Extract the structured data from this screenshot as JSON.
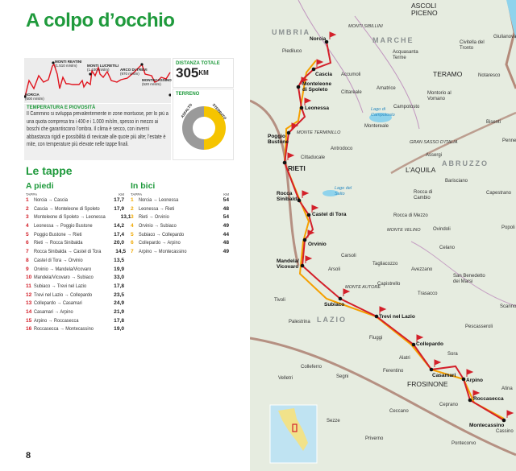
{
  "title": "A colpo d’occhio",
  "profile": {
    "points": [
      {
        "name": "NORCIA",
        "alt": "(600 m/slm)"
      },
      {
        "name": "MONTI REATINI",
        "alt": "(1.510 m/slm)"
      },
      {
        "name": "MONTI LUCRETILI",
        "alt": "(1.100 m/slm)"
      },
      {
        "name": "ARCO DI TREVI",
        "alt": "(970 m/slm)"
      },
      {
        "name": "MONTECASSINO",
        "alt": "(520 m/slm)"
      }
    ]
  },
  "distance": {
    "label": "DISTANZA TOTALE",
    "value": "305",
    "unit": "KM"
  },
  "terrain": {
    "label": "TERRENO",
    "asphalt_label": "ASFALTO",
    "dirt_label": "STERRATO",
    "asphalt_share": 0.5,
    "dirt_share": 0.5,
    "asphalt_color": "#9a9a9a",
    "dirt_color": "#f5c400"
  },
  "climate": {
    "label": "TEMPERATURA E PIOVOSITÀ",
    "text": "Il Cammino si sviluppa prevalentemente in zone montuose, per lo più a una quota compresa tra i 400 e i 1.000 m/slm, spesso in mezzo ai boschi che garantiscono l’ombra. Il clima è secco, con inverni abbastanza rigidi e possibilità di nevicate alle quote più alte; l’estate è mite, con temperature più elevate nelle tappe finali."
  },
  "tappe": {
    "heading": "Le tappe",
    "piedi": {
      "label": "A piedi",
      "col_tappa": "TAPPA",
      "col_km": "KM",
      "rows": [
        {
          "n": "1",
          "route": "Norcia → Cascia",
          "km": "17,7"
        },
        {
          "n": "2",
          "route": "Cascia → Monteleone di Spoleto",
          "km": "17,9"
        },
        {
          "n": "3",
          "route": "Monteleone di Spoleto → Leonessa",
          "km": "13,1"
        },
        {
          "n": "4",
          "route": "Leonessa → Poggio Bustone",
          "km": "14,2"
        },
        {
          "n": "5",
          "route": "Poggio Bustone → Rieti",
          "km": "17,4"
        },
        {
          "n": "6",
          "route": "Rieti → Rocca Sinibalda",
          "km": "20,0"
        },
        {
          "n": "7",
          "route": "Rocca Sinibalda → Castel di Tora",
          "km": "14,5"
        },
        {
          "n": "8",
          "route": "Castel di Tora → Orvinio",
          "km": "13,5"
        },
        {
          "n": "9",
          "route": "Orvinio → Mandela/Vicovaro",
          "km": "19,9"
        },
        {
          "n": "10",
          "route": "Mandela/Vicovaro → Subiaco",
          "km": "33,0"
        },
        {
          "n": "11",
          "route": "Subiaco → Trevi nel Lazio",
          "km": "17,8"
        },
        {
          "n": "12",
          "route": "Trevi nel Lazio → Collepardo",
          "km": "23,5"
        },
        {
          "n": "13",
          "route": "Collepardo → Casamari",
          "km": "24,9"
        },
        {
          "n": "14",
          "route": "Casamari → Arpino",
          "km": "21,9"
        },
        {
          "n": "15",
          "route": "Arpino → Roccasecca",
          "km": "17,8"
        },
        {
          "n": "16",
          "route": "Roccasecca → Montecassino",
          "km": "19,0"
        }
      ]
    },
    "bici": {
      "label": "In bici",
      "col_tappa": "TAPPA",
      "col_km": "KM",
      "rows": [
        {
          "n": "1",
          "route": "Norcia → Leonessa",
          "km": "54"
        },
        {
          "n": "2",
          "route": "Leonessa → Rieti",
          "km": "48"
        },
        {
          "n": "3",
          "route": "Rieti → Orvinio",
          "km": "54"
        },
        {
          "n": "4",
          "route": "Orvinio → Subiaco",
          "km": "49"
        },
        {
          "n": "5",
          "route": "Subiaco → Collepardo",
          "km": "44"
        },
        {
          "n": "6",
          "route": "Collepardo → Arpino",
          "km": "48"
        },
        {
          "n": "7",
          "route": "Arpino → Montecassino",
          "km": "49"
        }
      ]
    }
  },
  "page_number": "8",
  "map": {
    "route_color": "#d3202a",
    "bike_color": "#f5a000",
    "stops": [
      "Norcia",
      "Cascia",
      "Monteleone di Spoleto",
      "Leonessa",
      "Poggio Bustone",
      "RIETI",
      "Rocca Sinibalda",
      "Castel di Tora",
      "Orvinio",
      "Mandela/ Vicovaro",
      "Subiaco",
      "Trevi nel Lazio",
      "Collepardo",
      "Casamari",
      "Arpino",
      "Roccasecca",
      "Montecassino"
    ],
    "regions": [
      "UMBRIA",
      "MARCHE",
      "ABRUZZO",
      "LAZIO"
    ],
    "provinces": [
      "ASCOLI PICENO",
      "TERAMO",
      "L’AQUILA",
      "FROSINONE"
    ],
    "mountains": [
      "MONTI SIBILLINI",
      "MONTE TERMINILLO",
      "GRAN SASSO D’ITALIA",
      "MONTE VELINO",
      "MONTE AUTORE"
    ],
    "towns": [
      "Piediluco",
      "Accumoli",
      "Acquasanta Terme",
      "Civitella del Tronto",
      "Giulianova",
      "Notaresco",
      "Amatrice",
      "Cittareale",
      "Montorio al Vomano",
      "Campotosto",
      "Montereale",
      "Bisenti",
      "Penne",
      "Antrodoco",
      "Cittaducale",
      "Assergi",
      "Barisciano",
      "Capestrano",
      "Rocca di Cambio",
      "Rocca di Mezzo",
      "Ovindoli",
      "Popoli",
      "Celano",
      "Carsoli",
      "Tagliacozzo",
      "Avezzano",
      "Arsoli",
      "San Benedetto dei Marsi",
      "Capistrello",
      "Trasacco",
      "Tivoli",
      "Scanno",
      "Palestrina",
      "Pescasseroli",
      "Fiuggi",
      "Alatri",
      "Sora",
      "Colleferro",
      "Velletri",
      "Segni",
      "Ferentino",
      "Atina",
      "Ceprano",
      "Ceccano",
      "Sezze",
      "Priverno",
      "Pontecorvo",
      "Cassino"
    ],
    "lakes": [
      "Lago di Campotosto",
      "Lago del Salto"
    ]
  }
}
